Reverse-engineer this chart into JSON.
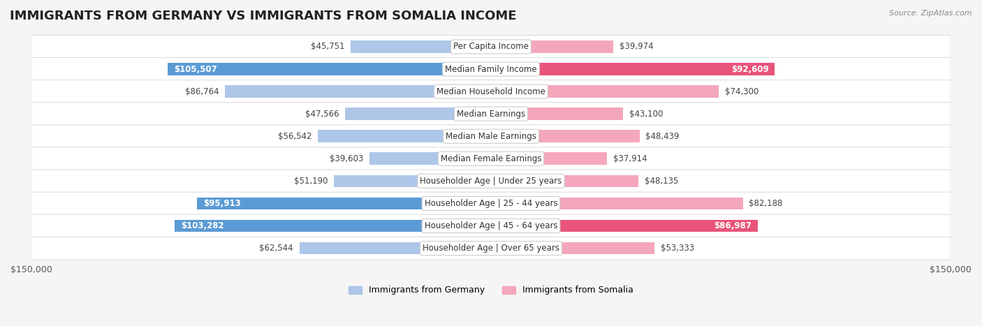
{
  "title": "IMMIGRANTS FROM GERMANY VS IMMIGRANTS FROM SOMALIA INCOME",
  "source": "Source: ZipAtlas.com",
  "categories": [
    "Per Capita Income",
    "Median Family Income",
    "Median Household Income",
    "Median Earnings",
    "Median Male Earnings",
    "Median Female Earnings",
    "Householder Age | Under 25 years",
    "Householder Age | 25 - 44 years",
    "Householder Age | 45 - 64 years",
    "Householder Age | Over 65 years"
  ],
  "germany_values": [
    45751,
    105507,
    86764,
    47566,
    56542,
    39603,
    51190,
    95913,
    103282,
    62544
  ],
  "somalia_values": [
    39974,
    92609,
    74300,
    43100,
    48439,
    37914,
    48135,
    82188,
    86987,
    53333
  ],
  "germany_labels": [
    "$45,751",
    "$105,507",
    "$86,764",
    "$47,566",
    "$56,542",
    "$39,603",
    "$51,190",
    "$95,913",
    "$103,282",
    "$62,544"
  ],
  "somalia_labels": [
    "$39,974",
    "$92,609",
    "$74,300",
    "$43,100",
    "$48,439",
    "$37,914",
    "$48,135",
    "$82,188",
    "$86,987",
    "$53,333"
  ],
  "germany_color_light": "#aec6e8",
  "germany_color_dark": "#5b9bd5",
  "somalia_color_light": "#f4a7bb",
  "somalia_color_dark": "#e8547a",
  "max_value": 150000,
  "xlim": 150000,
  "background_color": "#f5f5f5",
  "row_bg_color": "#ffffff",
  "legend_germany": "Immigrants from Germany",
  "legend_somalia": "Immigrants from Somalia",
  "bar_height": 0.55,
  "title_fontsize": 13,
  "label_fontsize": 8.5,
  "category_fontsize": 8.5
}
